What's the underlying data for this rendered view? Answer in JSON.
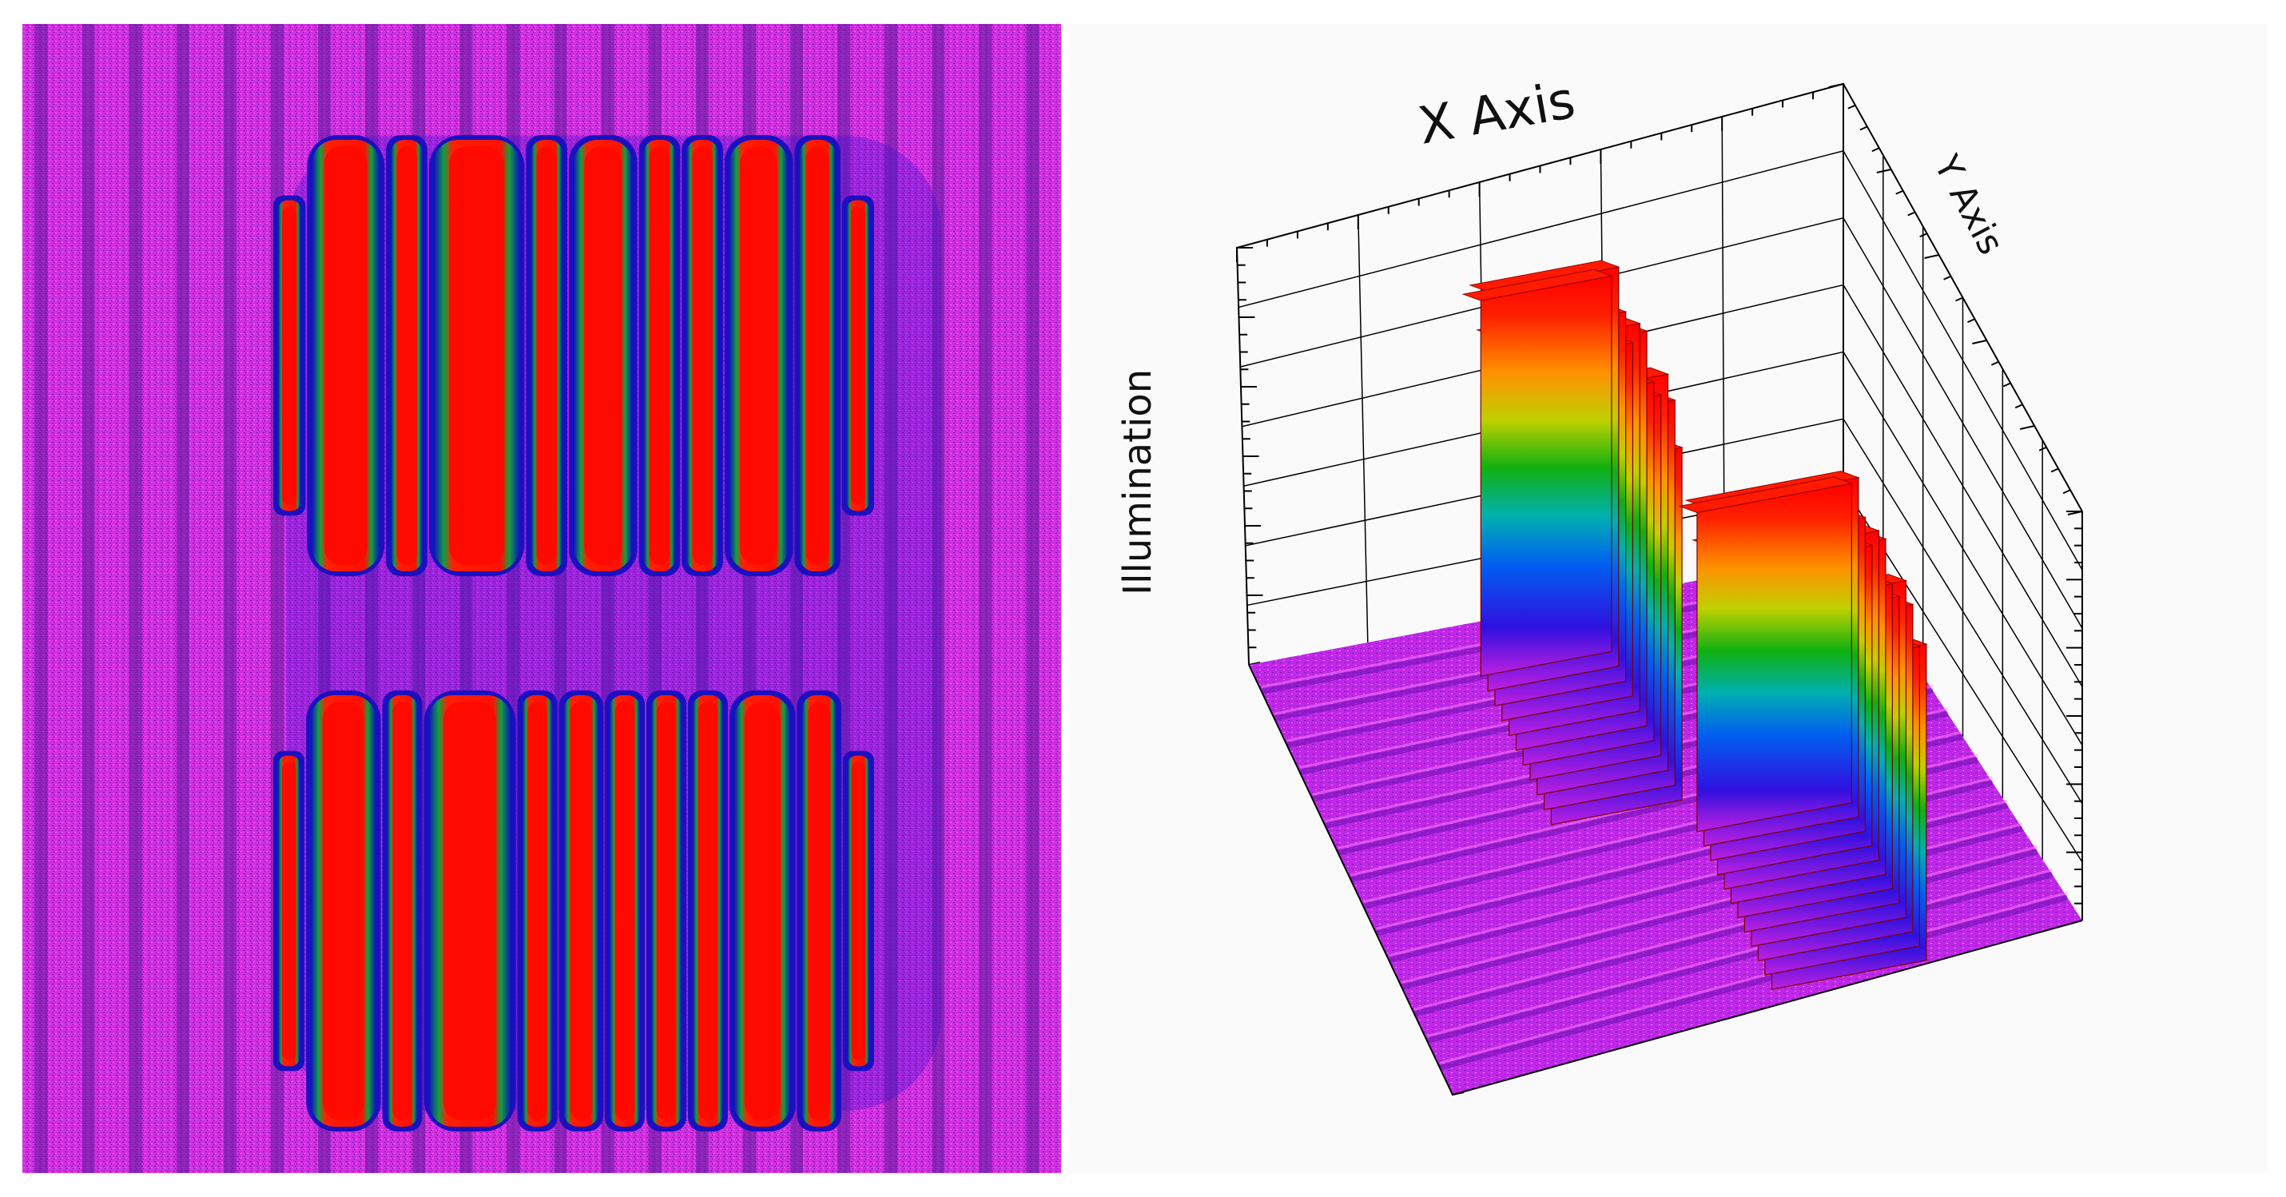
{
  "figure": {
    "panels": [
      "top-view-intensity-map",
      "3d-surface-plot"
    ]
  },
  "chart_data": [
    {
      "type": "heatmap",
      "view": "top-down false-color map",
      "colormap": [
        "#e020e0",
        "#8020f0",
        "#1010e0",
        "#00b0c0",
        "#10b010",
        "#e0e000",
        "#ff8000",
        "#ff0000"
      ],
      "background_stripes": 22,
      "blocks": [
        {
          "row": "upper",
          "widths": [
            0.5,
            1.5,
            0.7,
            1.9,
            0.7,
            1.3,
            0.7,
            0.7,
            1.3,
            0.8,
            0.5
          ]
        },
        {
          "row": "lower",
          "widths": [
            0.5,
            1.5,
            0.7,
            1.9,
            0.7,
            0.8,
            0.7,
            0.7,
            0.7,
            1.3,
            0.8,
            0.5
          ]
        }
      ],
      "saturated_value": 1.0,
      "background_value": 0.05
    },
    {
      "type": "surface",
      "view": "3d perspective",
      "title": "",
      "xlabel": "X Axis",
      "ylabel": "Y Axis",
      "zlabel": "Illumination",
      "grid": true,
      "legend": "none",
      "ridges": [
        {
          "name": "",
          "x_range": [
            0.3,
            0.52
          ],
          "y_range": [
            0.55,
            0.92
          ],
          "peak": 1.0,
          "stripes": 11
        },
        {
          "name": "",
          "x_range": [
            0.52,
            0.78
          ],
          "y_range": [
            0.1,
            0.48
          ],
          "peak": 1.0,
          "stripes": 12
        }
      ],
      "baseline": 0.05
    }
  ]
}
